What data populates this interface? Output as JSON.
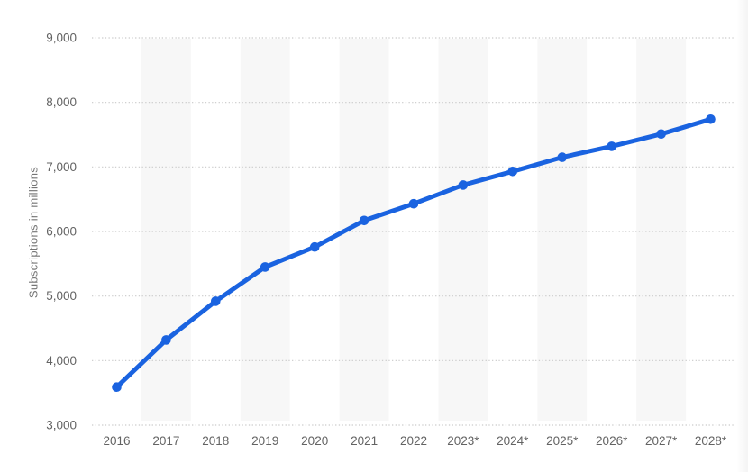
{
  "chart_data": {
    "type": "line",
    "ylabel": "Subscriptions in millions",
    "categories": [
      "2016",
      "2017",
      "2018",
      "2019",
      "2020",
      "2021",
      "2022",
      "2023*",
      "2024*",
      "2025*",
      "2026*",
      "2027*",
      "2028*"
    ],
    "values": [
      3590,
      4320,
      4920,
      5450,
      5760,
      6170,
      6430,
      6720,
      6930,
      7150,
      7320,
      7510,
      7740
    ],
    "ylim": [
      3000,
      9000
    ],
    "ytick_values": [
      3000,
      4000,
      5000,
      6000,
      7000,
      8000,
      9000
    ],
    "ytick_labels": [
      "3,000",
      "4,000",
      "5,000",
      "6,000",
      "7,000",
      "8,000",
      "9,000"
    ],
    "xlabel": "",
    "legend": "none",
    "grid": "horizontal-dotted",
    "line_color": "#1a63e0",
    "marker_color": "#1a63e0",
    "band_color": "#f7f7f7",
    "grid_color": "#c9c9c9",
    "tick_text_color": "#636363",
    "axis_title_color": "#757575",
    "background_color": "#ffffff"
  }
}
